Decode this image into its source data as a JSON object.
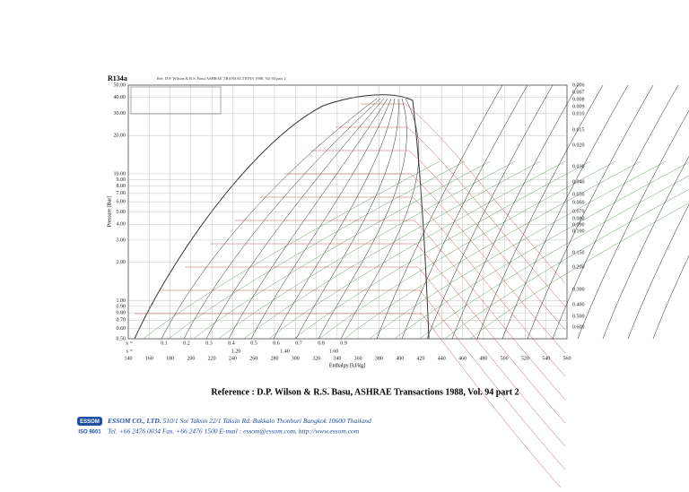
{
  "diagram": {
    "title": "R134a",
    "header_note": "Ref: D.P. Wilson & R.S. Basu ASHRAE TRANSACTIONS 1988, Vol 94 part 2",
    "y_axis": {
      "label": "Pressure [Bar]",
      "scale": "log",
      "lim": [
        0.5,
        50
      ],
      "ticks": [
        {
          "value": 0.5,
          "label": "0.50"
        },
        {
          "value": 0.6,
          "label": "0.60"
        },
        {
          "value": 0.7,
          "label": "0.70"
        },
        {
          "value": 0.8,
          "label": "0.80"
        },
        {
          "value": 0.9,
          "label": "0.90"
        },
        {
          "value": 1,
          "label": "1.00"
        },
        {
          "value": 2,
          "label": "2.00"
        },
        {
          "value": 3,
          "label": "3.00"
        },
        {
          "value": 4,
          "label": "4.00"
        },
        {
          "value": 5,
          "label": "5.00"
        },
        {
          "value": 6,
          "label": "6.00"
        },
        {
          "value": 7,
          "label": "7.00"
        },
        {
          "value": 8,
          "label": "8.00"
        },
        {
          "value": 9,
          "label": "9.00"
        },
        {
          "value": 10,
          "label": "10.00"
        },
        {
          "value": 20,
          "label": "20.00"
        },
        {
          "value": 30,
          "label": "30.00"
        },
        {
          "value": 40,
          "label": "40.00"
        },
        {
          "value": 50,
          "label": "50.00"
        }
      ]
    },
    "x_axis": {
      "label": "Enthalpy [kJ/kg]",
      "lim": [
        140,
        560
      ],
      "ticks": [
        140,
        160,
        180,
        200,
        220,
        240,
        260,
        280,
        300,
        320,
        340,
        360,
        380,
        400,
        420,
        440,
        460,
        480,
        500,
        520,
        540,
        560
      ]
    },
    "quality_prefix": "x =",
    "quality_labels": [
      "0.1",
      "0.2",
      "0.3",
      "0.4",
      "0.5",
      "0.6",
      "0.7",
      "0.8",
      "0.9"
    ],
    "entropy_prefix": "s =",
    "entropy_labels": [
      "1.20",
      "1.40",
      "1.60"
    ],
    "volume_labels": [
      "0.006",
      "0.007",
      "0.008",
      "0.009",
      "0.010",
      "0.015",
      "0.020",
      "0.030",
      "0.040",
      "0.050",
      "0.060",
      "0.070",
      "0.080",
      "0.090",
      "0.100",
      "0.150",
      "0.200",
      "0.300",
      "0.400",
      "0.500",
      "0.600"
    ]
  },
  "reference": "Reference : D.P. Wilson & R.S. Basu, ASHRAE Transactions 1988, Vol. 94 part 2",
  "footer": {
    "logo": "ESSOM",
    "cert": "ISO 9001",
    "company": "ESSOM CO., LTD.",
    "address": "510/1 Soi Taksin 22/1 Taksin Rd. Bukkalo Thonburi Bangkok 10600 Thailand",
    "contact": "Tel. +66 2476 0034 Fax. +66 2476 1500 E-mail : essom@essom.com,   http://www.essom.com"
  }
}
